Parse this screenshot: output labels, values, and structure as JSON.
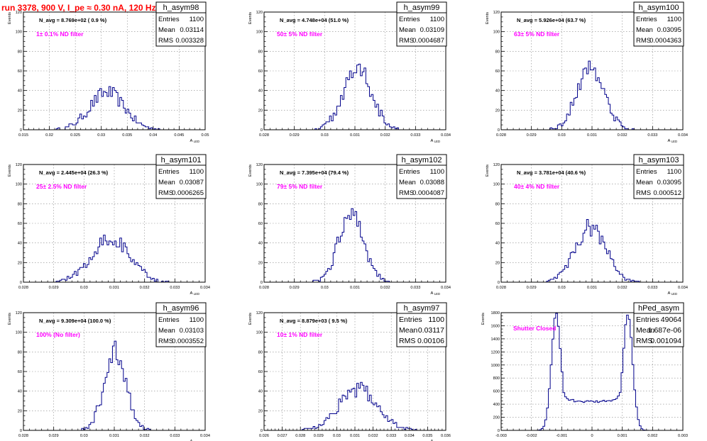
{
  "page": {
    "title": "run 3378,   900 V, I_pe ≈ 0.30 nA, 120 Hz"
  },
  "colors": {
    "title": "#ff0000",
    "histogram": "#00008b",
    "annotation": "#ff00ff",
    "frame": "#000000",
    "grid": "#888888"
  },
  "chart_data": [
    {
      "type": "histogram",
      "name": "h_asym98",
      "ylabel": "Events",
      "xlabel": "A_LED",
      "note": "N_avg = 8.769e+02 ( 0.9 %)",
      "label": "1± 0.1% ND filter",
      "stats": {
        "entries_label": "Entries",
        "entries": "1100",
        "mean_label": "Mean",
        "mean": "0.03114",
        "rms_label": "RMS",
        "rms": "0.003328"
      },
      "xlim": [
        0.015,
        0.05
      ],
      "ylim": [
        0,
        120
      ],
      "xticks": [
        "0.015",
        "0.02",
        "0.025",
        "0.03",
        "0.035",
        "0.04",
        "0.045",
        "0.05"
      ],
      "xtick_values": [
        0.015,
        0.02,
        0.025,
        0.03,
        0.035,
        0.04,
        0.045,
        0.05
      ],
      "yticks": [
        0,
        20,
        40,
        60,
        80,
        100,
        120
      ],
      "shape": {
        "kind": "gauss",
        "mu": 0.03114,
        "sigma": 0.00333,
        "peak": 38
      }
    },
    {
      "type": "histogram",
      "name": "h_asym99",
      "ylabel": "Events",
      "xlabel": "A_LED",
      "note": "N_avg = 4.748e+04 (51.0 %)",
      "label": "50± 5% ND filter",
      "stats": {
        "entries_label": "Entries",
        "entries": "1100",
        "mean_label": "Mean",
        "mean": "0.03109",
        "rms_label": "RMS",
        "rms": "0.0004687"
      },
      "xlim": [
        0.028,
        0.034
      ],
      "ylim": [
        0,
        120
      ],
      "xticks": [
        "0.028",
        "0.029",
        "0.03",
        "0.031",
        "0.032",
        "0.033",
        "0.034"
      ],
      "xtick_values": [
        0.028,
        0.029,
        0.03,
        0.031,
        0.032,
        0.033,
        0.034
      ],
      "yticks": [
        0,
        20,
        40,
        60,
        80,
        100,
        120
      ],
      "shape": {
        "kind": "gauss",
        "mu": 0.03109,
        "sigma": 0.00047,
        "peak": 63
      }
    },
    {
      "type": "histogram",
      "name": "h_asym100",
      "ylabel": "Events",
      "xlabel": "A_LED",
      "note": "N_avg = 5.926e+04 (63.7 %)",
      "label": "63± 5% ND filter",
      "stats": {
        "entries_label": "Entries",
        "entries": "1100",
        "mean_label": "Mean",
        "mean": "0.03095",
        "rms_label": "RMS",
        "rms": "0.0004363"
      },
      "xlim": [
        0.028,
        0.034
      ],
      "ylim": [
        0,
        120
      ],
      "xticks": [
        "0.028",
        "0.029",
        "0.03",
        "0.031",
        "0.032",
        "0.033",
        "0.034"
      ],
      "xtick_values": [
        0.028,
        0.029,
        0.03,
        0.031,
        0.032,
        0.033,
        0.034
      ],
      "yticks": [
        0,
        20,
        40,
        60,
        80,
        100,
        120
      ],
      "shape": {
        "kind": "gauss",
        "mu": 0.03095,
        "sigma": 0.00044,
        "peak": 65
      }
    },
    {
      "type": "histogram",
      "name": "h_asym101",
      "ylabel": "Events",
      "xlabel": "A_LED",
      "note": "N_avg = 2.445e+04 (26.3 %)",
      "label": "25± 2.5% ND filter",
      "stats": {
        "entries_label": "Entries",
        "entries": "1100",
        "mean_label": "Mean",
        "mean": "0.03087",
        "rms_label": "RMS",
        "rms": "0.0006265"
      },
      "xlim": [
        0.028,
        0.034
      ],
      "ylim": [
        0,
        120
      ],
      "xticks": [
        "0.028",
        "0.029",
        "0.03",
        "0.031",
        "0.032",
        "0.033",
        "0.034"
      ],
      "xtick_values": [
        0.028,
        0.029,
        0.03,
        0.031,
        0.032,
        0.033,
        0.034
      ],
      "yticks": [
        0,
        20,
        40,
        60,
        80,
        100,
        120
      ],
      "shape": {
        "kind": "gauss",
        "mu": 0.03087,
        "sigma": 0.00063,
        "peak": 45
      }
    },
    {
      "type": "histogram",
      "name": "h_asym102",
      "ylabel": "Events",
      "xlabel": "A_LED",
      "note": "N_avg = 7.395e+04 (79.4 %)",
      "label": "79± 5% ND filter",
      "stats": {
        "entries_label": "Entries",
        "entries": "1100",
        "mean_label": "Mean",
        "mean": "0.03088",
        "rms_label": "RMS",
        "rms": "0.0004087"
      },
      "xlim": [
        0.028,
        0.034
      ],
      "ylim": [
        0,
        120
      ],
      "xticks": [
        "0.028",
        "0.029",
        "0.03",
        "0.031",
        "0.032",
        "0.033",
        "0.034"
      ],
      "xtick_values": [
        0.028,
        0.029,
        0.03,
        0.031,
        0.032,
        0.033,
        0.034
      ],
      "yticks": [
        0,
        20,
        40,
        60,
        80,
        100,
        120
      ],
      "shape": {
        "kind": "gauss",
        "mu": 0.03088,
        "sigma": 0.00041,
        "peak": 72
      }
    },
    {
      "type": "histogram",
      "name": "h_asym103",
      "ylabel": "Events",
      "xlabel": "A_LED",
      "note": "N_avg = 3.781e+04 (40.6 %)",
      "label": "40± 4% ND filter",
      "stats": {
        "entries_label": "Entries",
        "entries": "1100",
        "mean_label": "Mean",
        "mean": "0.03095",
        "rms_label": "RMS",
        "rms": "0.000512"
      },
      "xlim": [
        0.028,
        0.034
      ],
      "ylim": [
        0,
        120
      ],
      "xticks": [
        "0.028",
        "0.029",
        "0.03",
        "0.031",
        "0.032",
        "0.033",
        "0.034"
      ],
      "xtick_values": [
        0.028,
        0.029,
        0.03,
        0.031,
        0.032,
        0.033,
        0.034
      ],
      "yticks": [
        0,
        20,
        40,
        60,
        80,
        100,
        120
      ],
      "shape": {
        "kind": "gauss",
        "mu": 0.03095,
        "sigma": 0.00051,
        "peak": 56
      }
    },
    {
      "type": "histogram",
      "name": "h_asym96",
      "ylabel": "Events",
      "xlabel": "A_LED",
      "note": "N_avg = 9.309e+04 (100.0 %)",
      "label": "100% (No filter)",
      "stats": {
        "entries_label": "Entries",
        "entries": "1100",
        "mean_label": "Mean",
        "mean": "0.03103",
        "rms_label": "RMS",
        "rms": "0.0003552"
      },
      "xlim": [
        0.028,
        0.034
      ],
      "ylim": [
        0,
        120
      ],
      "xticks": [
        "0.028",
        "0.029",
        "0.03",
        "0.031",
        "0.032",
        "0.033",
        "0.034"
      ],
      "xtick_values": [
        0.028,
        0.029,
        0.03,
        0.031,
        0.032,
        0.033,
        0.034
      ],
      "yticks": [
        0,
        20,
        40,
        60,
        80,
        100,
        120
      ],
      "shape": {
        "kind": "gauss",
        "mu": 0.03103,
        "sigma": 0.00036,
        "peak": 80
      }
    },
    {
      "type": "histogram",
      "name": "h_asym97",
      "ylabel": "Events",
      "xlabel": "A_LED",
      "note": "N_avg = 8.879e+03 ( 9.5 %)",
      "label": "10± 1% ND filter",
      "stats": {
        "entries_label": "Entries",
        "entries": "1100",
        "mean_label": "Mean",
        "mean": "0.03117",
        "rms_label": "RMS",
        "rms": "0.00106"
      },
      "xlim": [
        0.026,
        0.036
      ],
      "ylim": [
        0,
        120
      ],
      "xticks": [
        "0.026",
        "0.027",
        "0.028",
        "0.029",
        "0.03",
        "0.031",
        "0.032",
        "0.033",
        "0.034",
        "0.035",
        "0.036"
      ],
      "xtick_values": [
        0.026,
        0.027,
        0.028,
        0.029,
        0.03,
        0.031,
        0.032,
        0.033,
        0.034,
        0.035,
        0.036
      ],
      "yticks": [
        0,
        20,
        40,
        60,
        80,
        100,
        120
      ],
      "shape": {
        "kind": "gauss",
        "mu": 0.03117,
        "sigma": 0.00106,
        "peak": 42
      }
    },
    {
      "type": "histogram",
      "name": "hPed_asym",
      "ylabel": "Events",
      "xlabel": "",
      "note": "",
      "label": "Shutter Closed",
      "stats": {
        "entries_label": "Entries",
        "entries": "49064",
        "mean_label": "Mean",
        "mean": "1.687e-06",
        "rms_label": "RMS",
        "rms": "0.001094"
      },
      "xlim": [
        -0.003,
        0.003
      ],
      "ylim": [
        0,
        1800
      ],
      "xticks": [
        "-0.003",
        "-0.002",
        "-0.001",
        "0",
        "0.001",
        "0.002",
        "0.003"
      ],
      "xtick_values": [
        -0.003,
        -0.002,
        -0.001,
        0,
        0.001,
        0.002,
        0.003
      ],
      "yticks": [
        0,
        200,
        400,
        600,
        800,
        1000,
        1200,
        1400,
        1600,
        1800
      ],
      "shape": {
        "kind": "bimodal",
        "mu1": -0.00118,
        "mu2": 0.00118,
        "sigma": 0.00016,
        "peak": 1780,
        "floor": 460
      }
    }
  ]
}
